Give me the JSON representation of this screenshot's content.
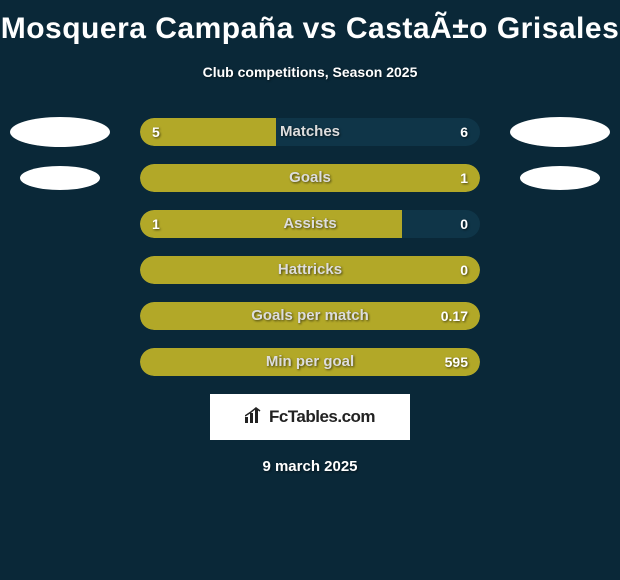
{
  "title": "Mosquera Campaña vs CastaÃ±o Grisales",
  "subtitle": "Club competitions, Season 2025",
  "date": "9 march 2025",
  "logo_text": "FcTables.com",
  "colors": {
    "background": "#0a2838",
    "bar_fill": "#b2a828",
    "bar_track": "#0f3548",
    "text": "#ffffff",
    "oval": "#ffffff",
    "logo_bg": "#ffffff",
    "logo_text": "#222222"
  },
  "stats": [
    {
      "label": "Matches",
      "left_value": "5",
      "right_value": "6",
      "left_pct": 40,
      "right_pct": 0,
      "full_bar": false,
      "show_oval_left": true,
      "show_oval_right": true,
      "oval_size": "large"
    },
    {
      "label": "Goals",
      "left_value": "",
      "right_value": "1",
      "left_pct": 0,
      "right_pct": 0,
      "full_bar": true,
      "show_oval_left": true,
      "show_oval_right": true,
      "oval_size": "small"
    },
    {
      "label": "Assists",
      "left_value": "1",
      "right_value": "0",
      "left_pct": 77,
      "right_pct": 0,
      "full_bar": false,
      "show_oval_left": false,
      "show_oval_right": false,
      "oval_size": "none"
    },
    {
      "label": "Hattricks",
      "left_value": "",
      "right_value": "0",
      "left_pct": 0,
      "right_pct": 0,
      "full_bar": true,
      "show_oval_left": false,
      "show_oval_right": false,
      "oval_size": "none"
    },
    {
      "label": "Goals per match",
      "left_value": "",
      "right_value": "0.17",
      "left_pct": 0,
      "right_pct": 0,
      "full_bar": true,
      "show_oval_left": false,
      "show_oval_right": false,
      "oval_size": "none"
    },
    {
      "label": "Min per goal",
      "left_value": "",
      "right_value": "595",
      "left_pct": 0,
      "right_pct": 0,
      "full_bar": true,
      "show_oval_left": false,
      "show_oval_right": false,
      "oval_size": "none"
    }
  ]
}
